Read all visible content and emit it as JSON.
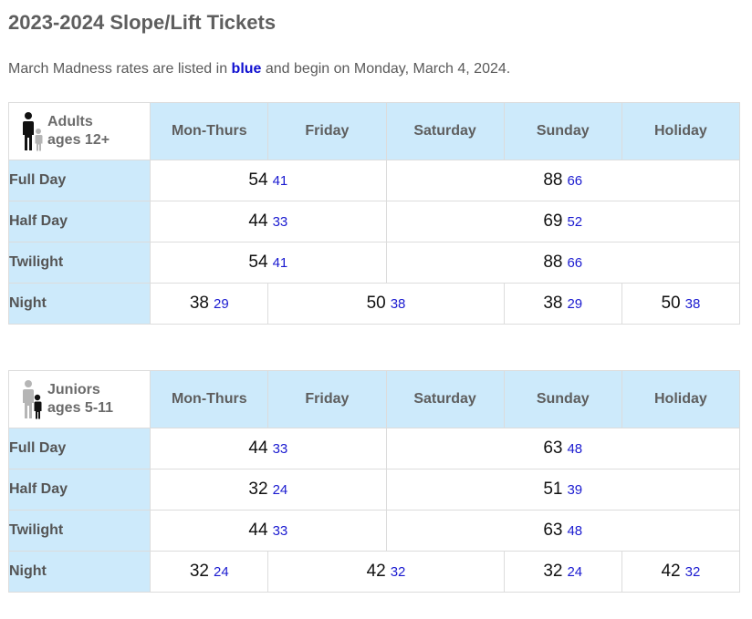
{
  "page": {
    "title": "2023-2024 Slope/Lift Tickets",
    "intro": {
      "before": "March Madness rates are listed in ",
      "highlight": "blue",
      "after": " and begin on Monday, March 4, 2024."
    },
    "colors": {
      "header_bg": "#cdeafb",
      "march_madness": "#1a1ad0"
    }
  },
  "day_headers": [
    "Mon-Thurs",
    "Friday",
    "Saturday",
    "Sunday",
    "Holiday"
  ],
  "tables": [
    {
      "group": "Adults",
      "ages": "ages 12+",
      "icon": "adult-with-child-icon",
      "rows": [
        {
          "label": "Full Day",
          "weekday": {
            "regular": "54",
            "march": "41"
          },
          "weekend": {
            "regular": "88",
            "march": "66"
          }
        },
        {
          "label": "Half Day",
          "weekday": {
            "regular": "44",
            "march": "33"
          },
          "weekend": {
            "regular": "69",
            "march": "52"
          }
        },
        {
          "label": "Twilight",
          "weekday": {
            "regular": "54",
            "march": "41"
          },
          "weekend": {
            "regular": "88",
            "march": "66"
          }
        }
      ],
      "night": {
        "label": "Night",
        "mon_thurs": {
          "regular": "38",
          "march": "29"
        },
        "fri_sat": {
          "regular": "50",
          "march": "38"
        },
        "sunday": {
          "regular": "38",
          "march": "29"
        },
        "holiday": {
          "regular": "50",
          "march": "38"
        }
      }
    },
    {
      "group": "Juniors",
      "ages": "ages 5-11",
      "icon": "child-with-adult-icon",
      "rows": [
        {
          "label": "Full Day",
          "weekday": {
            "regular": "44",
            "march": "33"
          },
          "weekend": {
            "regular": "63",
            "march": "48"
          }
        },
        {
          "label": "Half Day",
          "weekday": {
            "regular": "32",
            "march": "24"
          },
          "weekend": {
            "regular": "51",
            "march": "39"
          }
        },
        {
          "label": "Twilight",
          "weekday": {
            "regular": "44",
            "march": "33"
          },
          "weekend": {
            "regular": "63",
            "march": "48"
          }
        }
      ],
      "night": {
        "label": "Night",
        "mon_thurs": {
          "regular": "32",
          "march": "24"
        },
        "fri_sat": {
          "regular": "42",
          "march": "32"
        },
        "sunday": {
          "regular": "32",
          "march": "24"
        },
        "holiday": {
          "regular": "42",
          "march": "32"
        }
      }
    }
  ]
}
